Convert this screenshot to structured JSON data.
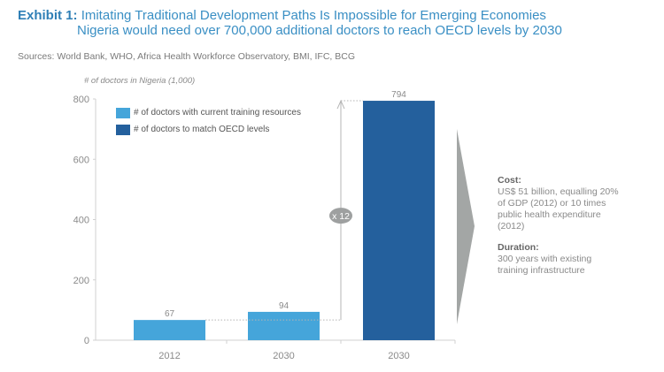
{
  "title": {
    "label": "Exhibit 1:",
    "line1": "Imitating Traditional Development Paths Is Impossible for Emerging Economies",
    "line2": "Nigeria would need over 700,000 additional doctors to reach OECD levels by 2030"
  },
  "sources": "Sources: World Bank, WHO, Africa Health Workforce Observatory, BMI, IFC, BCG",
  "colors": {
    "current": "#45a5da",
    "oecd": "#24609d",
    "accent": "#2f7fb6",
    "chevron": "#a3a6a5"
  },
  "chart_data": {
    "type": "bar",
    "ylabel": "# of doctors in Nigeria (1,000)",
    "ylim": [
      0,
      800
    ],
    "yticks": [
      0,
      200,
      400,
      600,
      800
    ],
    "yticklabels": [
      "0",
      "200",
      "400",
      "600",
      "800"
    ],
    "categories": [
      "2012",
      "2030",
      "2030"
    ],
    "values": [
      67,
      94,
      794
    ],
    "value_labels": [
      "67",
      "94",
      "794"
    ],
    "series_of_bar": [
      "current",
      "current",
      "oecd"
    ],
    "legend": [
      {
        "key": "current",
        "label": "# of doctors with current training resources"
      },
      {
        "key": "oecd",
        "label": "# of doctors to match OECD levels"
      }
    ],
    "legend_position": "top-left",
    "grid": false,
    "annotation": {
      "label": "x 12",
      "from": 67,
      "to": 794
    }
  },
  "side_panel": {
    "cost_heading": "Cost:",
    "cost_lines": [
      "US$ 51 billion, equalling 20%",
      "of GDP (2012) or 10 times",
      "public health expenditure",
      "(2012)"
    ],
    "duration_heading": "Duration:",
    "duration_lines": [
      "300 years with existing",
      "training infrastructure"
    ]
  }
}
